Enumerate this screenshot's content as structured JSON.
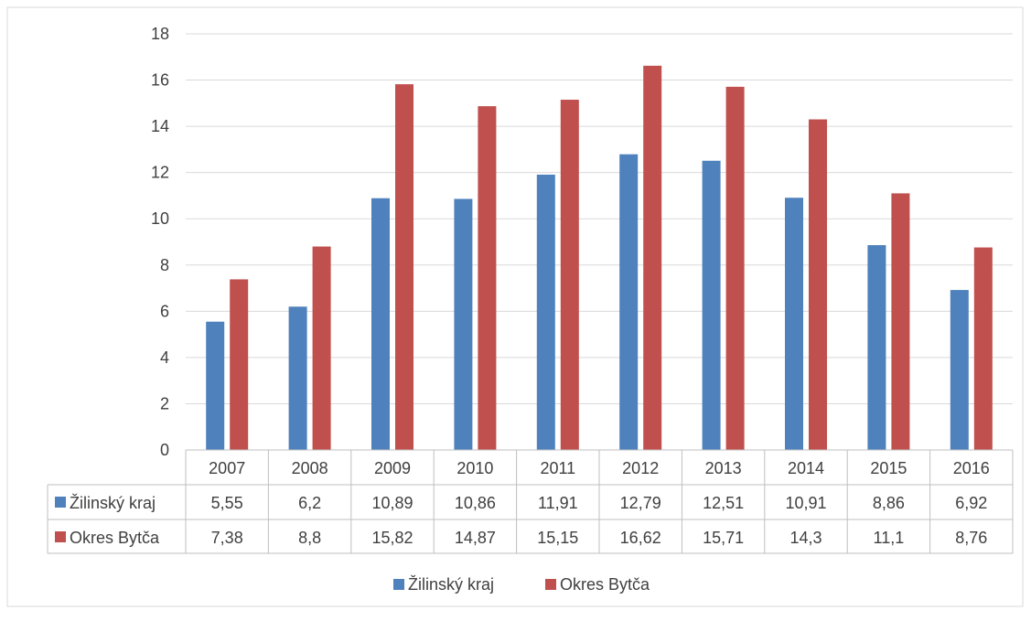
{
  "chart_data": {
    "type": "bar",
    "categories": [
      "2007",
      "2008",
      "2009",
      "2010",
      "2011",
      "2012",
      "2013",
      "2014",
      "2015",
      "2016"
    ],
    "series": [
      {
        "name": "Žilinský kraj",
        "color": "#4f81bd",
        "values": [
          5.55,
          6.2,
          10.89,
          10.86,
          11.91,
          12.79,
          12.51,
          10.91,
          8.86,
          6.92
        ],
        "labels": [
          "5,55",
          "6,2",
          "10,89",
          "10,86",
          "11,91",
          "12,79",
          "12,51",
          "10,91",
          "8,86",
          "6,92"
        ]
      },
      {
        "name": "Okres Bytča",
        "color": "#c0504d",
        "values": [
          7.38,
          8.8,
          15.82,
          14.87,
          15.15,
          16.62,
          15.71,
          14.3,
          11.1,
          8.76
        ],
        "labels": [
          "7,38",
          "8,8",
          "15,82",
          "14,87",
          "15,15",
          "16,62",
          "15,71",
          "14,3",
          "11,1",
          "8,76"
        ]
      }
    ],
    "ylim": [
      0,
      18
    ],
    "yticks": [
      "0",
      "2",
      "4",
      "6",
      "8",
      "10",
      "12",
      "14",
      "16",
      "18"
    ],
    "grid": true,
    "legend_position": "bottom",
    "data_table": true
  }
}
